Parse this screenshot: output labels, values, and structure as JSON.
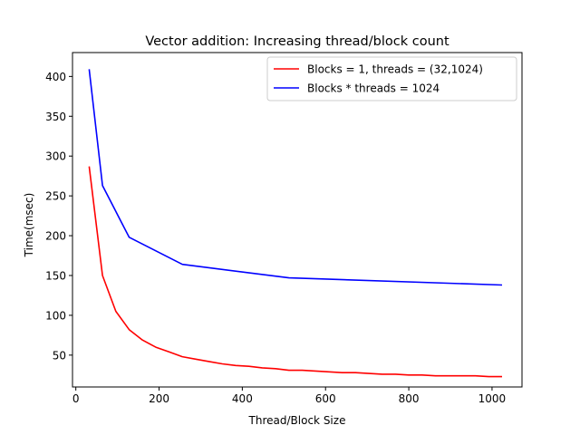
{
  "chart_data": {
    "type": "line",
    "title": "Vector addition: Increasing thread/block count",
    "xlabel": "Thread/Block Size",
    "ylabel": "Time(msec)",
    "xlim": [
      -8,
      1072
    ],
    "ylim": [
      10,
      430
    ],
    "xticks": [
      0,
      200,
      400,
      600,
      800,
      1000
    ],
    "yticks": [
      50,
      100,
      150,
      200,
      250,
      300,
      350,
      400
    ],
    "grid": false,
    "legend_position": "top-right",
    "series": [
      {
        "name": "Blocks = 1, threads = (32,1024)",
        "color": "#ff0000",
        "x": [
          32,
          64,
          96,
          128,
          160,
          192,
          224,
          256,
          288,
          320,
          352,
          384,
          416,
          448,
          480,
          512,
          544,
          576,
          608,
          640,
          672,
          704,
          736,
          768,
          800,
          832,
          864,
          896,
          928,
          960,
          992,
          1024
        ],
        "y": [
          287,
          150,
          105,
          82,
          69,
          60,
          54,
          48,
          45,
          42,
          39,
          37,
          36,
          34,
          33,
          31,
          31,
          30,
          29,
          28,
          28,
          27,
          26,
          26,
          25,
          25,
          24,
          24,
          24,
          24,
          23,
          23
        ]
      },
      {
        "name": "Blocks * threads = 1024",
        "color": "#0000ff",
        "x": [
          32,
          64,
          128,
          256,
          512,
          1024
        ],
        "y": [
          409,
          263,
          198,
          164,
          147,
          138
        ]
      }
    ]
  }
}
